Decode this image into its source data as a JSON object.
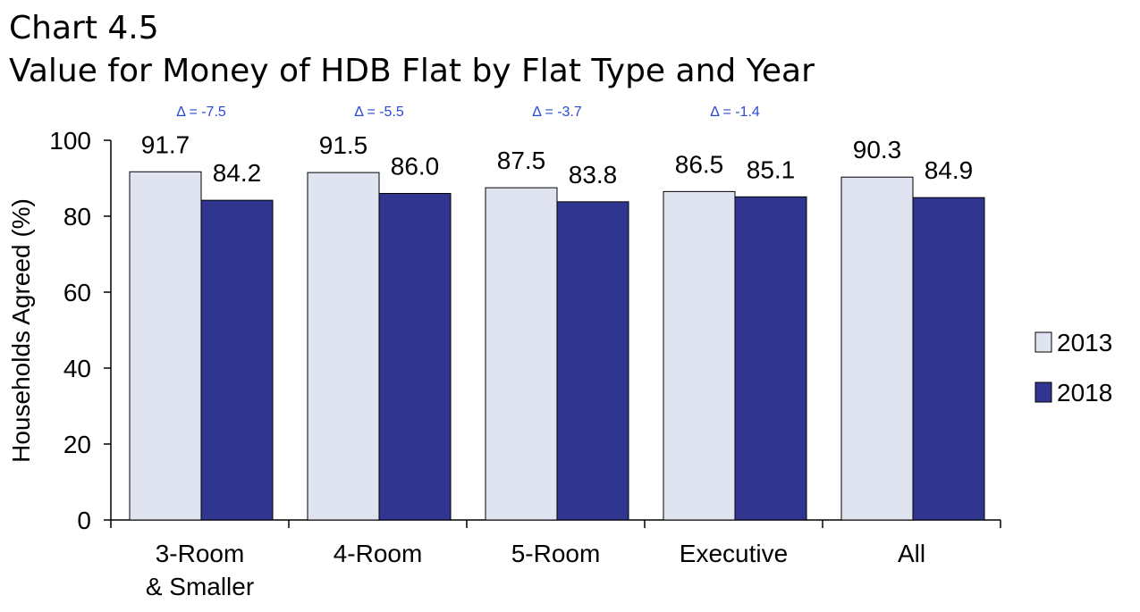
{
  "chart_data": {
    "type": "bar",
    "title": "Chart 4.5",
    "subtitle": "Value for Money of HDB Flat by Flat Type and Year",
    "ylabel": "Households Agreed (%)",
    "xlabel": "",
    "ylim": [
      0,
      100
    ],
    "yticks": [
      0,
      20,
      40,
      60,
      80,
      100
    ],
    "categories": [
      [
        "3-Room",
        "& Smaller"
      ],
      [
        "4-Room"
      ],
      [
        "5-Room"
      ],
      [
        "Executive"
      ],
      [
        "All"
      ]
    ],
    "series": [
      {
        "name": "2013",
        "values": [
          91.7,
          91.5,
          87.5,
          86.5,
          90.3
        ],
        "value_labels": [
          "91.7",
          "91.5",
          "87.5",
          "86.5",
          "90.3"
        ],
        "color": "#dfe4f0"
      },
      {
        "name": "2018",
        "values": [
          84.2,
          86.0,
          83.8,
          85.1,
          84.9
        ],
        "value_labels": [
          "84.2",
          "86.0",
          "83.8",
          "85.1",
          "84.9"
        ],
        "color": "#303590"
      }
    ],
    "annotations": [
      "Δ = -7.5",
      "Δ = -5.5",
      "Δ = -3.7",
      "Δ = -1.4",
      ""
    ],
    "legend_position": "right",
    "grid": false
  }
}
